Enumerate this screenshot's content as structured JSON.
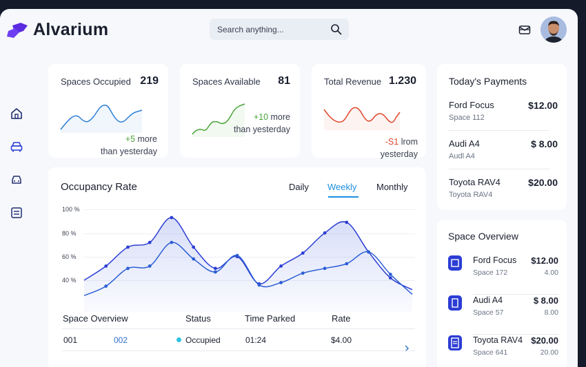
{
  "app": {
    "name": "Alvarium"
  },
  "search": {
    "placeholder": "Search anything..."
  },
  "sidebar": {
    "items": [
      {
        "icon": "home-icon"
      },
      {
        "icon": "car-icon"
      },
      {
        "icon": "car-front-icon"
      },
      {
        "icon": "list-icon"
      }
    ]
  },
  "stats": [
    {
      "label": "Spaces Occupied",
      "value": "219",
      "delta_main": "+5",
      "delta_rest": " more",
      "delta_line2": "than yesterday",
      "trend_color": "#2d7fd6"
    },
    {
      "label": "Spaces Available",
      "value": "81",
      "delta_main": "+10",
      "delta_rest": " more",
      "delta_line2": "than yesterday",
      "trend_color": "#4aa33a"
    },
    {
      "label": "Total Revenue",
      "value": "1.230",
      "delta_main": "-S1",
      "delta_rest": " lrom",
      "delta_line2": "yesterday",
      "trend_color": "#e0452a"
    }
  ],
  "payments": {
    "title": "Today's Payments",
    "items": [
      {
        "name": "Ford Focus",
        "amount": "$12.00",
        "space": "Space 112"
      },
      {
        "name": "Audi A4",
        "amount": "$ 8.00",
        "space": "Audl A4"
      },
      {
        "name": "Toyota RAV4",
        "amount": "$20.00",
        "space": "Toyota RAV4"
      }
    ]
  },
  "occupancy": {
    "title": "Occupancy Rate",
    "tabs": [
      {
        "label": "Daily"
      },
      {
        "label": "Weekly",
        "active": true
      },
      {
        "label": "Monthly"
      }
    ],
    "y_ticks": [
      "100 %",
      "80 %",
      "60 %",
      "40 %"
    ]
  },
  "chart_data": {
    "type": "area",
    "title": "Occupancy Rate",
    "ylim": [
      30,
      100
    ],
    "grid": true,
    "series": [
      {
        "values": [
          40,
          52,
          68,
          72,
          93,
          68,
          50,
          60,
          37,
          52,
          63,
          80,
          89,
          64,
          42,
          32
        ]
      },
      {
        "values": [
          27,
          35,
          50,
          52,
          72,
          58,
          47,
          61,
          36,
          38,
          46,
          50,
          54,
          64,
          45,
          28
        ]
      }
    ]
  },
  "space_table": {
    "headers": [
      "Space Overview",
      "Status",
      "Time Parked",
      "Rate"
    ],
    "rows": [
      {
        "id": "001",
        "space": "002",
        "status": "Occupied",
        "time": "01:24",
        "rate": "$4.00"
      }
    ]
  },
  "space_overview": {
    "title": "Space Overview",
    "items": [
      {
        "name": "Ford Focus",
        "amount": "$12.00",
        "space": "Space 172",
        "sub_amount": "4.00",
        "icon": "parking-slot-icon"
      },
      {
        "name": "Audi A4",
        "amount": "$ 8.00",
        "space": "Space 57",
        "sub_amount": "8.00",
        "icon": "parking-slot-icon"
      },
      {
        "name": "Toyota RAV4",
        "amount": "$20.00",
        "space": "Space 641",
        "sub_amount": "20.00",
        "icon": "ticket-icon"
      }
    ]
  }
}
